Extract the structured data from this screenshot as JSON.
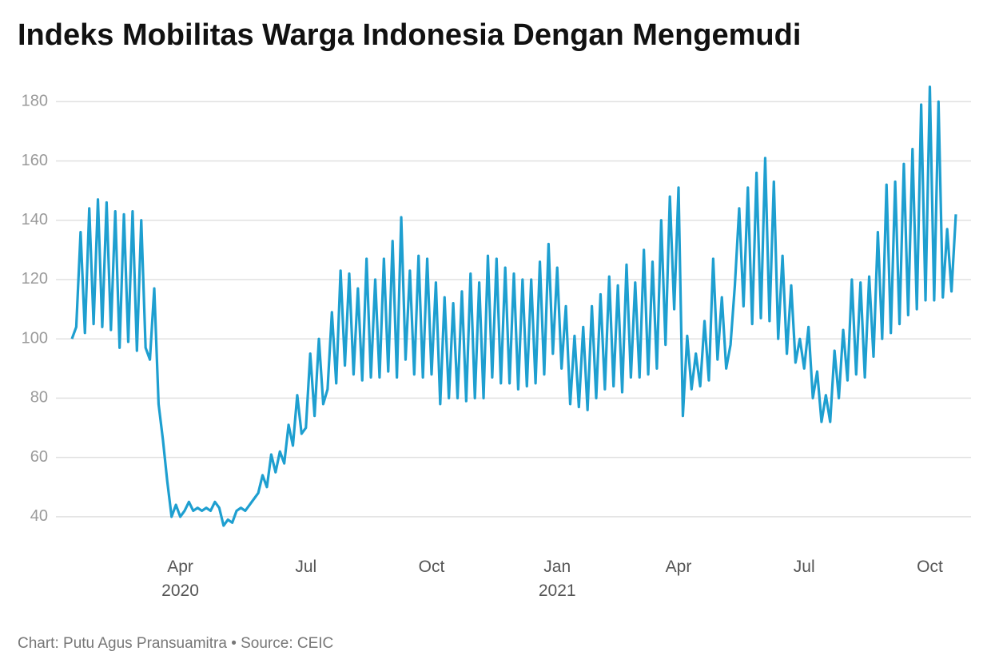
{
  "chart_data": {
    "type": "line",
    "title": "Indeks Mobilitas Warga Indonesia Dengan Mengemudi",
    "source": "Chart: Putu Agus Pransuamitra • Source: CEIC",
    "color": "#1e9fd0",
    "grid": true,
    "ylim": [
      30,
      186
    ],
    "yticks": [
      40,
      60,
      80,
      100,
      120,
      140,
      160,
      180
    ],
    "categories": [
      null,
      null,
      null,
      null,
      null,
      null,
      null,
      null,
      null,
      null,
      null,
      null,
      null,
      null,
      null,
      null,
      null,
      null,
      null,
      null,
      null,
      null,
      null,
      null,
      null,
      "Apr 2020",
      null,
      null,
      null,
      null,
      null,
      null,
      null,
      null,
      null,
      null,
      null,
      null,
      null,
      null,
      null,
      null,
      null,
      null,
      null,
      null,
      null,
      null,
      null,
      null,
      null,
      null,
      null,
      null,
      "Jul",
      null,
      null,
      null,
      null,
      null,
      null,
      null,
      null,
      null,
      null,
      null,
      null,
      null,
      null,
      null,
      null,
      null,
      null,
      null,
      null,
      null,
      null,
      null,
      null,
      null,
      null,
      null,
      null,
      "Oct",
      null,
      null,
      null,
      null,
      null,
      null,
      null,
      null,
      null,
      null,
      null,
      null,
      null,
      null,
      null,
      null,
      null,
      null,
      null,
      null,
      null,
      null,
      null,
      null,
      null,
      null,
      null,
      null,
      "Jan 2021",
      null,
      null,
      null,
      null,
      null,
      null,
      null,
      null,
      null,
      null,
      null,
      null,
      null,
      null,
      null,
      null,
      null,
      null,
      null,
      null,
      null,
      null,
      null,
      null,
      null,
      null,
      null,
      "Apr",
      null,
      null,
      null,
      null,
      null,
      null,
      null,
      null,
      null,
      null,
      null,
      null,
      null,
      null,
      null,
      null,
      null,
      null,
      null,
      null,
      null,
      null,
      null,
      null,
      null,
      null,
      null,
      null,
      "Jul",
      null,
      null,
      null,
      null,
      null,
      null,
      null,
      null,
      null,
      null,
      null,
      null,
      null,
      null,
      null,
      null,
      null,
      null,
      null,
      null,
      null,
      null,
      null,
      null,
      null,
      null,
      null,
      null,
      "Oct",
      null,
      null,
      null,
      null,
      null,
      null
    ],
    "values": [
      100,
      104,
      136,
      102,
      144,
      105,
      147,
      104,
      146,
      103,
      143,
      97,
      142,
      99,
      143,
      96,
      140,
      97,
      93,
      117,
      78,
      66,
      52,
      40,
      44,
      40,
      42,
      45,
      42,
      43,
      42,
      43,
      42,
      45,
      43,
      37,
      39,
      38,
      42,
      43,
      42,
      44,
      46,
      48,
      54,
      50,
      61,
      55,
      62,
      58,
      71,
      64,
      81,
      68,
      70,
      95,
      74,
      100,
      78,
      83,
      109,
      85,
      123,
      91,
      122,
      88,
      117,
      86,
      127,
      87,
      120,
      87,
      127,
      89,
      133,
      87,
      141,
      93,
      123,
      88,
      128,
      87,
      127,
      88,
      119,
      78,
      114,
      80,
      112,
      80,
      116,
      79,
      122,
      80,
      119,
      80,
      128,
      87,
      127,
      85,
      124,
      85,
      122,
      83,
      120,
      84,
      120,
      85,
      126,
      88,
      132,
      95,
      124,
      90,
      111,
      78,
      101,
      77,
      104,
      76,
      111,
      80,
      115,
      83,
      121,
      84,
      118,
      82,
      125,
      87,
      119,
      87,
      130,
      88,
      126,
      90,
      140,
      98,
      148,
      110,
      151,
      74,
      101,
      83,
      95,
      84,
      106,
      86,
      127,
      93,
      114,
      90,
      98,
      118,
      144,
      111,
      151,
      105,
      156,
      107,
      161,
      106,
      153,
      100,
      128,
      95,
      118,
      92,
      100,
      90,
      104,
      80,
      89,
      72,
      81,
      72,
      96,
      80,
      103,
      86,
      120,
      88,
      119,
      87,
      121,
      94,
      136,
      100,
      152,
      102,
      153,
      105,
      159,
      108,
      164,
      110,
      179,
      113,
      185,
      113,
      180,
      114,
      137,
      116,
      142
    ]
  }
}
